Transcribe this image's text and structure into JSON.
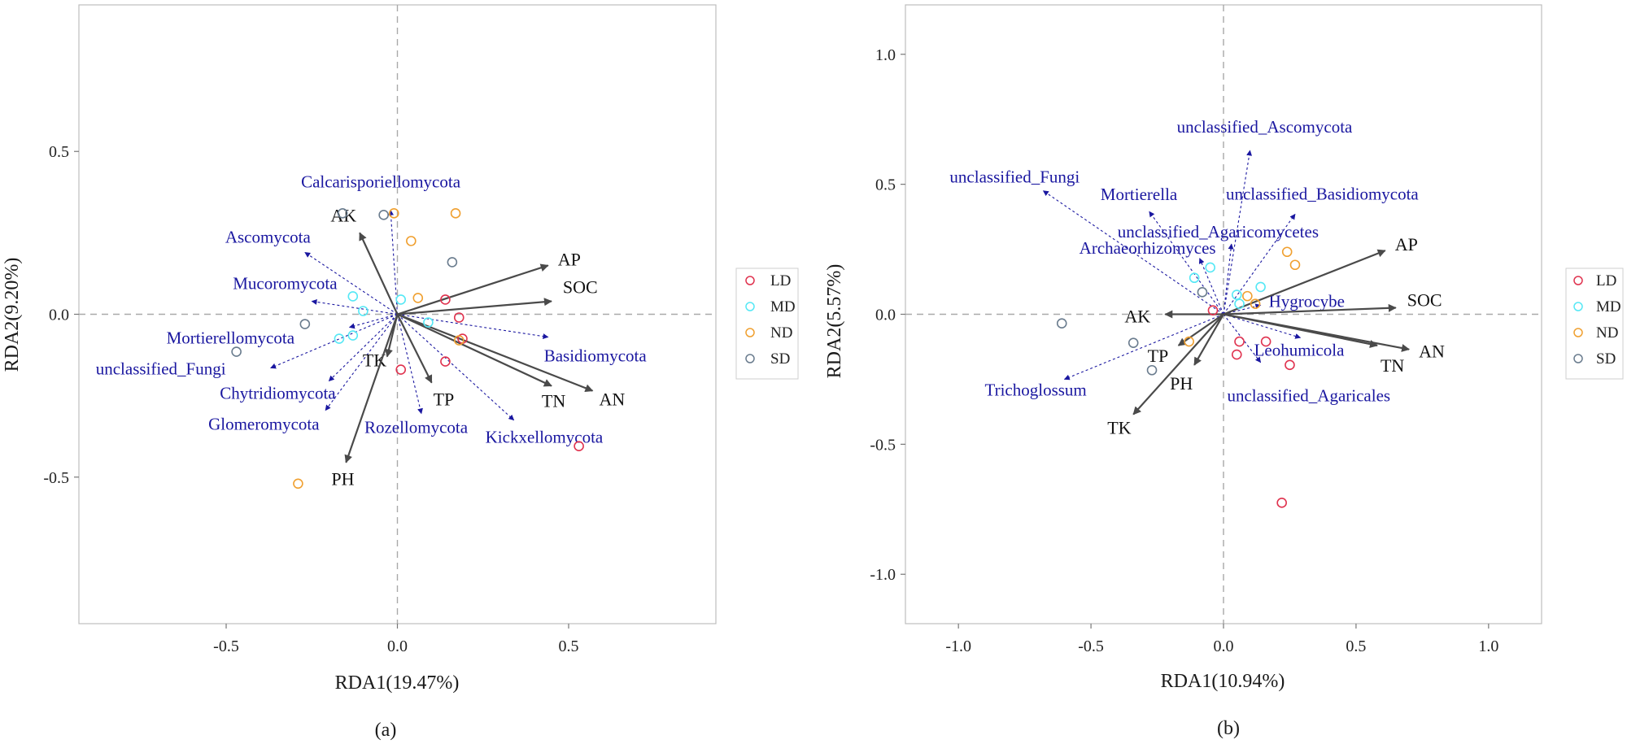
{
  "chart_data": [
    {
      "type": "scatter",
      "panel_label": "(a)",
      "xlabel": "RDA1(19.47%)",
      "ylabel": "RDA2(9.20%)",
      "xlim": [
        -0.93,
        0.93
      ],
      "ylim": [
        -0.95,
        0.95
      ],
      "xticks": [
        -0.5,
        0.0,
        0.5
      ],
      "yticks": [
        -0.5,
        0.0,
        0.5
      ],
      "xtick_labels": [
        "-0.5",
        "0.0",
        "0.5"
      ],
      "ytick_labels": [
        "-0.5",
        "0.0",
        "0.5"
      ],
      "grid": false,
      "legend": {
        "placement": "right",
        "entries": [
          "LD",
          "MD",
          "ND",
          "SD"
        ]
      },
      "series": [
        {
          "name": "LD",
          "color": "#e0334f",
          "points": [
            [
              0.14,
              0.045
            ],
            [
              0.18,
              -0.01
            ],
            [
              0.19,
              -0.075
            ],
            [
              0.14,
              -0.145
            ],
            [
              0.01,
              -0.17
            ],
            [
              0.53,
              -0.405
            ]
          ]
        },
        {
          "name": "MD",
          "color": "#56e8f5",
          "points": [
            [
              -0.13,
              0.055
            ],
            [
              -0.1,
              0.01
            ],
            [
              -0.13,
              -0.065
            ],
            [
              -0.17,
              -0.075
            ],
            [
              0.01,
              0.045
            ],
            [
              0.09,
              -0.025
            ]
          ]
        },
        {
          "name": "ND",
          "color": "#f0a030",
          "points": [
            [
              -0.01,
              0.31
            ],
            [
              0.17,
              0.31
            ],
            [
              0.04,
              0.225
            ],
            [
              0.06,
              0.05
            ],
            [
              0.18,
              -0.08
            ],
            [
              -0.29,
              -0.52
            ]
          ]
        },
        {
          "name": "SD",
          "color": "#6a7c8e",
          "points": [
            [
              -0.16,
              0.31
            ],
            [
              -0.04,
              0.305
            ],
            [
              0.16,
              0.16
            ],
            [
              -0.27,
              -0.03
            ],
            [
              -0.47,
              -0.115
            ]
          ]
        }
      ],
      "env_vectors": [
        {
          "label": "AK",
          "x": -0.11,
          "y": 0.25
        },
        {
          "label": "AP",
          "x": 0.44,
          "y": 0.15
        },
        {
          "label": "SOC",
          "x": 0.45,
          "y": 0.04
        },
        {
          "label": "TK",
          "x": -0.03,
          "y": -0.13
        },
        {
          "label": "TP",
          "x": 0.1,
          "y": -0.21
        },
        {
          "label": "TN",
          "x": 0.45,
          "y": -0.22
        },
        {
          "label": "AN",
          "x": 0.57,
          "y": -0.235
        },
        {
          "label": "PH",
          "x": -0.15,
          "y": -0.455
        }
      ],
      "species_vectors": [
        {
          "label": "Calcarisporiellomycota",
          "x": -0.02,
          "y": 0.32
        },
        {
          "label": "Ascomycota",
          "x": -0.27,
          "y": 0.19
        },
        {
          "label": "Mucoromycota",
          "x": -0.25,
          "y": 0.04
        },
        {
          "label": "Mortierellomycota",
          "x": -0.14,
          "y": -0.04
        },
        {
          "label": "unclassified_Fungi",
          "x": -0.37,
          "y": -0.165
        },
        {
          "label": "Chytridiomycota",
          "x": -0.2,
          "y": -0.205
        },
        {
          "label": "Glomeromycota",
          "x": -0.21,
          "y": -0.295
        },
        {
          "label": "Rozellomycota",
          "x": 0.07,
          "y": -0.305
        },
        {
          "label": "Kickxellomycota",
          "x": 0.34,
          "y": -0.325
        },
        {
          "label": "Basidiomycota",
          "x": 0.44,
          "y": -0.07
        }
      ]
    },
    {
      "type": "scatter",
      "panel_label": "(b)",
      "xlabel": "RDA1(10.94%)",
      "ylabel": "RDA2(5.57%)",
      "xlim": [
        -1.2,
        1.2
      ],
      "ylim": [
        -1.19,
        1.19
      ],
      "xticks": [
        -1.0,
        -0.5,
        0.0,
        0.5,
        1.0
      ],
      "yticks": [
        -1.0,
        -0.5,
        0.0,
        0.5,
        1.0
      ],
      "xtick_labels": [
        "-1.0",
        "-0.5",
        "0.0",
        "0.5",
        "1.0"
      ],
      "ytick_labels": [
        "-1.0",
        "-0.5",
        "0.0",
        "0.5",
        "1.0"
      ],
      "grid": false,
      "legend": {
        "placement": "right",
        "entries": [
          "LD",
          "MD",
          "ND",
          "SD"
        ]
      },
      "series": [
        {
          "name": "LD",
          "color": "#e0334f",
          "points": [
            [
              -0.04,
              0.015
            ],
            [
              0.06,
              -0.105
            ],
            [
              0.05,
              -0.155
            ],
            [
              0.16,
              -0.105
            ],
            [
              0.25,
              -0.195
            ],
            [
              0.22,
              -0.725
            ]
          ]
        },
        {
          "name": "MD",
          "color": "#56e8f5",
          "points": [
            [
              -0.11,
              0.14
            ],
            [
              -0.05,
              0.18
            ],
            [
              0.05,
              0.075
            ],
            [
              0.14,
              0.105
            ],
            [
              0.06,
              0.04
            ]
          ]
        },
        {
          "name": "ND",
          "color": "#f0a030",
          "points": [
            [
              0.24,
              0.24
            ],
            [
              0.27,
              0.19
            ],
            [
              0.09,
              0.07
            ],
            [
              0.12,
              0.04
            ],
            [
              -0.13,
              -0.105
            ]
          ]
        },
        {
          "name": "SD",
          "color": "#6a7c8e",
          "points": [
            [
              -0.08,
              0.085
            ],
            [
              -0.61,
              -0.035
            ],
            [
              -0.34,
              -0.11
            ],
            [
              -0.27,
              -0.215
            ]
          ]
        }
      ],
      "env_vectors": [
        {
          "label": "AP",
          "x": 0.61,
          "y": 0.245
        },
        {
          "label": "SOC",
          "x": 0.65,
          "y": 0.025
        },
        {
          "label": "AK",
          "x": -0.22,
          "y": 0.0
        },
        {
          "label": "TP",
          "x": -0.17,
          "y": -0.12
        },
        {
          "label": "PH",
          "x": -0.11,
          "y": -0.195
        },
        {
          "label": "TK",
          "x": -0.34,
          "y": -0.385
        },
        {
          "label": "TN",
          "x": 0.58,
          "y": -0.12
        },
        {
          "label": "AN",
          "x": 0.7,
          "y": -0.135
        }
      ],
      "species_vectors": [
        {
          "label": "unclassified_Ascomycota",
          "x": 0.1,
          "y": 0.63
        },
        {
          "label": "unclassified_Fungi",
          "x": -0.68,
          "y": 0.475
        },
        {
          "label": "Mortierella",
          "x": -0.28,
          "y": 0.395
        },
        {
          "label": "unclassified_Basidiomycota",
          "x": 0.27,
          "y": 0.385
        },
        {
          "label": "unclassified_Agaricomycetes",
          "x": 0.03,
          "y": 0.27
        },
        {
          "label": "Archaeorhizomyces",
          "x": -0.09,
          "y": 0.215
        },
        {
          "label": "Hygrocybe",
          "x": 0.14,
          "y": 0.035
        },
        {
          "label": "Trichoglossum",
          "x": -0.6,
          "y": -0.25
        },
        {
          "label": "Leohumicola",
          "x": 0.14,
          "y": -0.185
        },
        {
          "label": "unclassified_Agaricales",
          "x": 0.29,
          "y": -0.09
        }
      ]
    }
  ]
}
